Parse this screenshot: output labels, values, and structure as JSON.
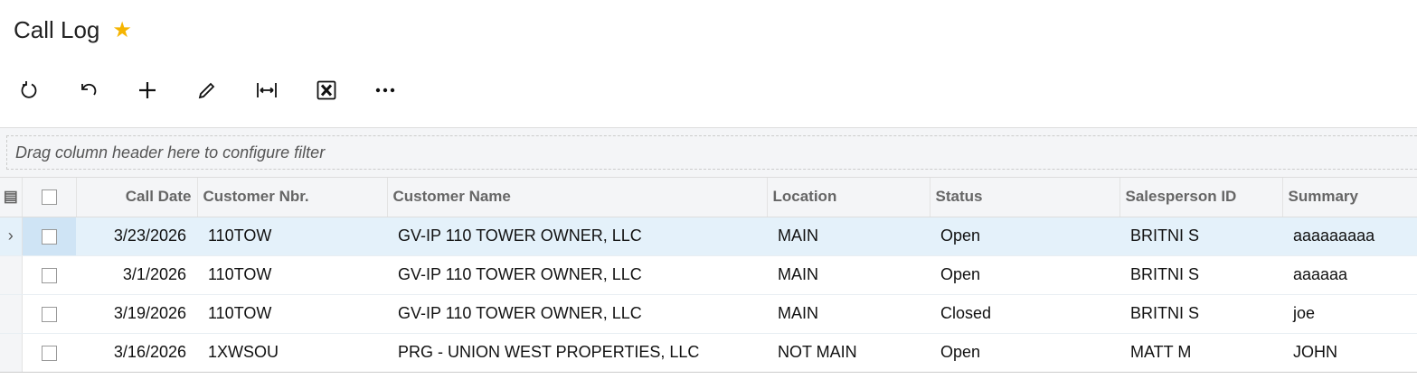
{
  "title": "Call Log",
  "favorite": true,
  "accent": "#f5b400",
  "toolbar": [
    {
      "name": "refresh-icon"
    },
    {
      "name": "undo-icon"
    },
    {
      "name": "add-icon"
    },
    {
      "name": "edit-icon"
    },
    {
      "name": "fit-columns-icon"
    },
    {
      "name": "export-excel-icon"
    },
    {
      "name": "more-icon"
    }
  ],
  "filter_placeholder": "Drag column header here to configure filter",
  "columns": [
    "Call Date",
    "Customer Nbr.",
    "Customer Name",
    "Location",
    "Status",
    "Salesperson ID",
    "Summary"
  ],
  "rows": [
    [
      "3/23/2026",
      "110TOW",
      "GV-IP 110 TOWER OWNER, LLC",
      "MAIN",
      "Open",
      "BRITNI S",
      "aaaaaaaaa"
    ],
    [
      "3/1/2026",
      "110TOW",
      "GV-IP 110 TOWER OWNER, LLC",
      "MAIN",
      "Open",
      "BRITNI S",
      "aaaaaa"
    ],
    [
      "3/19/2026",
      "110TOW",
      "GV-IP 110 TOWER OWNER, LLC",
      "MAIN",
      "Closed",
      "BRITNI S",
      "joe"
    ],
    [
      "3/16/2026",
      "1XWSOU",
      "PRG - UNION WEST PROPERTIES, LLC",
      "NOT MAIN",
      "Open",
      "MATT M",
      "JOHN"
    ]
  ]
}
